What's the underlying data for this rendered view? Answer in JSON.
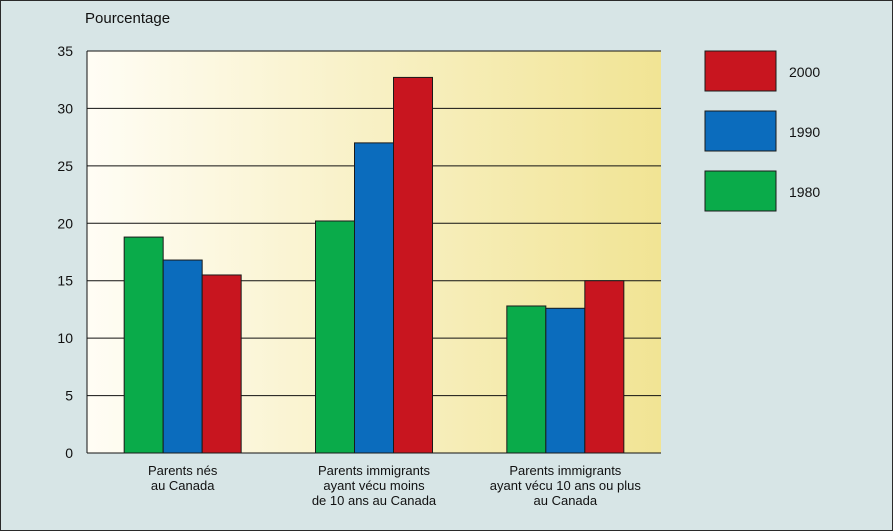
{
  "chart_data": {
    "type": "bar",
    "ylabel": "Pourcentage",
    "ylim": [
      0,
      35
    ],
    "yticks": [
      0,
      5,
      10,
      15,
      20,
      25,
      30,
      35
    ],
    "grid": true,
    "legend_position": "right",
    "categories": [
      "Parents nés\nau Canada",
      "Parents immigrants\nayant vécu moins\nde 10 ans au Canada",
      "Parents immigrants\nayant vécu 10 ans ou plus\nau Canada"
    ],
    "series": [
      {
        "name": "1980",
        "color": "#0aab4a",
        "values": [
          18.8,
          20.2,
          12.8
        ]
      },
      {
        "name": "1990",
        "color": "#0b6cbd",
        "values": [
          16.8,
          27.0,
          12.6
        ]
      },
      {
        "name": "2000",
        "color": "#c8151f",
        "values": [
          15.5,
          32.7,
          15.0
        ]
      }
    ],
    "legend_order": [
      "2000",
      "1990",
      "1980"
    ]
  }
}
